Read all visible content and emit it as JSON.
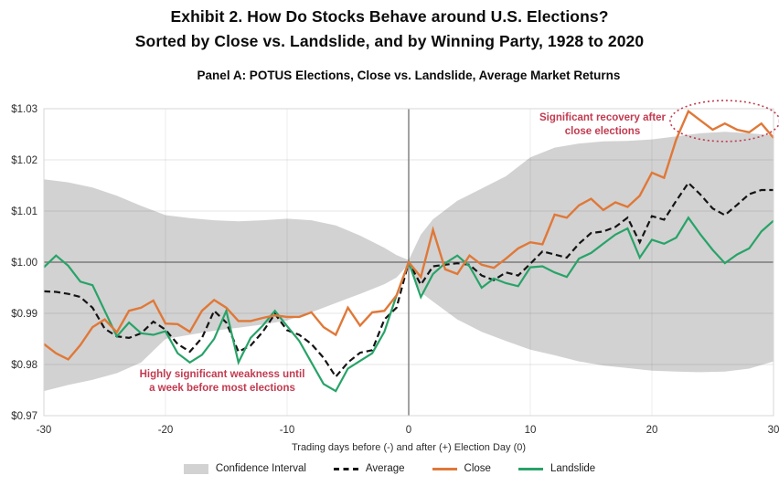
{
  "title": {
    "line1": "Exhibit 2. How Do Stocks Behave around U.S. Elections?",
    "line2": "Sorted by Close vs. Landslide, and by Winning Party, 1928 to 2020"
  },
  "panel_title": "Panel A: POTUS Elections, Close vs. Landslide, Average Market Returns",
  "annotations": {
    "color": "#c23b50",
    "recovery": {
      "line1": "Significant recovery after",
      "line2": "close elections"
    },
    "weakness": {
      "line1": "Highly significant weakness until",
      "line2": "a week before most elections"
    },
    "ellipse": {
      "center_day": 26,
      "center_value": 1.0276,
      "rx_days": 4.5,
      "ry_value": 0.004
    }
  },
  "chart_data": {
    "type": "line",
    "title": "Panel A: POTUS Elections, Close vs. Landslide, Average Market Returns",
    "xlabel": "Trading days before (-) and after (+) Election Day (0)",
    "ylabel": "",
    "xlim": [
      -30,
      30
    ],
    "ylim": [
      0.97,
      1.03
    ],
    "grid": true,
    "legend_position": "bottom",
    "x_ticks": [
      {
        "label": "-30",
        "value": -30
      },
      {
        "label": "-20",
        "value": -20
      },
      {
        "label": "-10",
        "value": -10
      },
      {
        "label": "0",
        "value": 0
      },
      {
        "label": "10",
        "value": 10
      },
      {
        "label": "20",
        "value": 20
      },
      {
        "label": "30",
        "value": 30
      }
    ],
    "y_ticks": [
      {
        "label": "$1.03",
        "value": 1.03
      },
      {
        "label": "$1.02",
        "value": 1.02
      },
      {
        "label": "$1.01",
        "value": 1.01
      },
      {
        "label": "$1.00",
        "value": 1.0
      },
      {
        "label": "$0.99",
        "value": 0.99
      },
      {
        "label": "$0.98",
        "value": 0.98
      },
      {
        "label": "$0.97",
        "value": 0.97
      }
    ],
    "x": [
      -30,
      -29,
      -28,
      -27,
      -26,
      -25,
      -24,
      -23,
      -22,
      -21,
      -20,
      -19,
      -18,
      -17,
      -16,
      -15,
      -14,
      -13,
      -12,
      -11,
      -10,
      -9,
      -8,
      -7,
      -6,
      -5,
      -4,
      -3,
      -2,
      -1,
      0,
      1,
      2,
      3,
      4,
      5,
      6,
      7,
      8,
      9,
      10,
      11,
      12,
      13,
      14,
      15,
      16,
      17,
      18,
      19,
      20,
      21,
      22,
      23,
      24,
      25,
      26,
      27,
      28,
      29,
      30
    ],
    "series": [
      {
        "name": "Average",
        "color": "#141414",
        "dash": "7 4",
        "width": 2.2,
        "values": [
          0.9943,
          0.9942,
          0.9938,
          0.9932,
          0.9911,
          0.987,
          0.9855,
          0.9852,
          0.9861,
          0.9884,
          0.9868,
          0.984,
          0.9825,
          0.9852,
          0.9905,
          0.9882,
          0.9825,
          0.9837,
          0.9864,
          0.9899,
          0.9867,
          0.9858,
          0.984,
          0.9813,
          0.9776,
          0.9804,
          0.9823,
          0.9828,
          0.9888,
          0.9911,
          1.0,
          0.9956,
          0.9992,
          0.9995,
          0.9998,
          0.9995,
          0.9974,
          0.9965,
          0.998,
          0.9974,
          0.9997,
          1.0021,
          1.0015,
          1.0009,
          1.0036,
          1.0057,
          1.006,
          1.0069,
          1.0087,
          1.0039,
          1.009,
          1.0083,
          1.012,
          1.0155,
          1.0132,
          1.0105,
          1.0092,
          1.0112,
          1.0133,
          1.0141,
          1.0141
        ]
      },
      {
        "name": "Landslide",
        "color": "#28a368",
        "dash": null,
        "width": 2.2,
        "values": [
          0.999,
          1.0013,
          0.9993,
          0.9962,
          0.9955,
          0.9905,
          0.9855,
          0.9882,
          0.9861,
          0.9858,
          0.9865,
          0.9822,
          0.9804,
          0.9819,
          0.985,
          0.9905,
          0.9804,
          0.9852,
          0.9876,
          0.9905,
          0.9875,
          0.9846,
          0.9804,
          0.9762,
          0.9748,
          0.9792,
          0.9807,
          0.9822,
          0.9864,
          0.9935,
          1.0,
          0.9932,
          0.9977,
          0.9998,
          1.0013,
          0.9992,
          0.995,
          0.9968,
          0.9959,
          0.9953,
          0.999,
          0.9992,
          0.998,
          0.9971,
          1.0007,
          1.0018,
          1.0036,
          1.0054,
          1.0066,
          1.0009,
          1.0044,
          1.0036,
          1.0048,
          1.0087,
          1.0054,
          1.0024,
          0.9998,
          1.0015,
          1.0027,
          1.006,
          1.0081
        ]
      },
      {
        "name": "Close",
        "color": "#e07838",
        "dash": null,
        "width": 2.4,
        "values": [
          0.984,
          0.9822,
          0.981,
          0.9838,
          0.9873,
          0.9888,
          0.9863,
          0.9905,
          0.9911,
          0.9925,
          0.988,
          0.9879,
          0.9864,
          0.9905,
          0.9926,
          0.9911,
          0.9885,
          0.9885,
          0.9891,
          0.9896,
          0.9893,
          0.9893,
          0.9902,
          0.9873,
          0.9858,
          0.9911,
          0.9876,
          0.9902,
          0.9905,
          0.9935,
          1.0,
          0.9971,
          1.0063,
          0.9986,
          0.9977,
          1.0013,
          0.9995,
          0.9989,
          1.0007,
          1.0027,
          1.0039,
          1.0035,
          1.0093,
          1.0087,
          1.0111,
          1.0124,
          1.0102,
          1.0117,
          1.0108,
          1.013,
          1.0175,
          1.0165,
          1.024,
          1.0295,
          1.0277,
          1.0259,
          1.0271,
          1.0259,
          1.0254,
          1.0271,
          1.0243
        ]
      }
    ],
    "confidence_interval": {
      "color": "#d2d2d2",
      "days": [
        -30,
        -28,
        -26,
        -24,
        -22,
        -20,
        -18,
        -16,
        -14,
        -12,
        -10,
        -8,
        -6,
        -4,
        -2,
        -1,
        0,
        1,
        2,
        4,
        6,
        8,
        10,
        12,
        14,
        16,
        18,
        20,
        22,
        24,
        26,
        28,
        30
      ],
      "lower": [
        0.9748,
        0.976,
        0.977,
        0.9783,
        0.9804,
        0.985,
        0.9858,
        0.9866,
        0.9872,
        0.9878,
        0.9886,
        0.9902,
        0.992,
        0.9938,
        0.9957,
        0.997,
        0.9996,
        0.9941,
        0.9923,
        0.9888,
        0.9864,
        0.9846,
        0.9829,
        0.9818,
        0.9806,
        0.9798,
        0.9793,
        0.9788,
        0.9786,
        0.9785,
        0.9786,
        0.9792,
        0.9806
      ],
      "upper": [
        1.0162,
        1.0156,
        1.0146,
        1.013,
        1.011,
        1.0092,
        1.0086,
        1.0082,
        1.008,
        1.0082,
        1.0085,
        1.0082,
        1.0072,
        1.0052,
        1.0028,
        1.0014,
        1.0004,
        1.0054,
        1.0084,
        1.012,
        1.0144,
        1.0168,
        1.0205,
        1.0224,
        1.0232,
        1.0236,
        1.0237,
        1.024,
        1.0246,
        1.0252,
        1.0255,
        1.0252,
        1.0248
      ]
    },
    "legend": [
      {
        "label": "Confidence Interval",
        "swatch": "band",
        "color": "#d2d2d2"
      },
      {
        "label": "Average",
        "swatch": "dashed-line",
        "color": "#141414"
      },
      {
        "label": "Close",
        "swatch": "line",
        "color": "#e07838"
      },
      {
        "label": "Landslide",
        "swatch": "line",
        "color": "#28a368"
      }
    ]
  }
}
